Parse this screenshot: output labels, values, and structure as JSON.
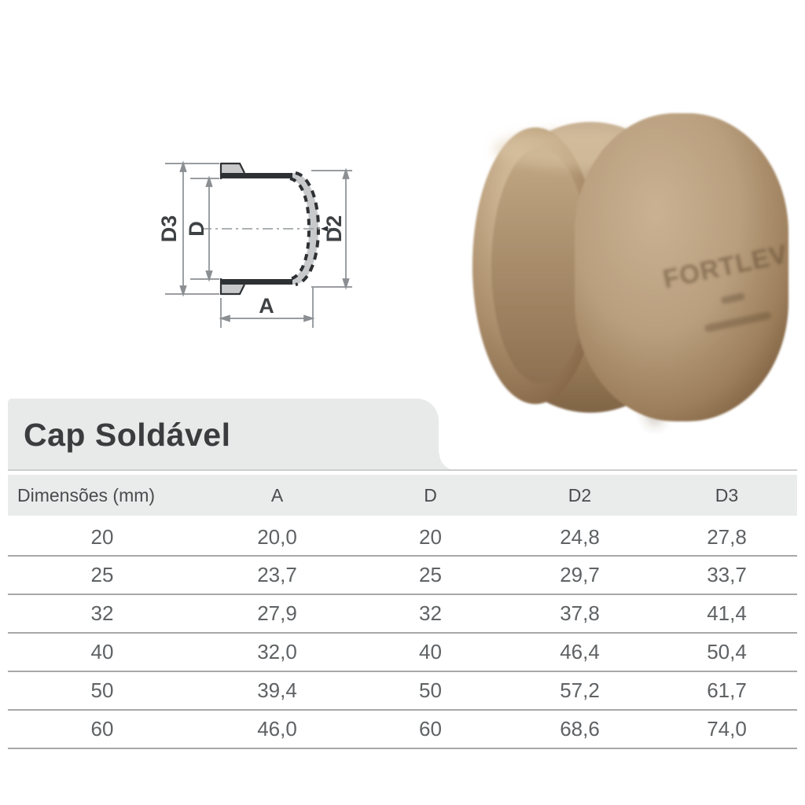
{
  "page": {
    "title": "Cap Soldável"
  },
  "diagram": {
    "labels": {
      "d3": "D3",
      "d": "D",
      "d2": "D2",
      "a": "A"
    }
  },
  "photo": {
    "emboss_brand": "FORTLEV"
  },
  "table": {
    "headers": [
      "Dimensões (mm)",
      "A",
      "D",
      "D2",
      "D3"
    ],
    "rows": [
      [
        "20",
        "20,0",
        "20",
        "24,8",
        "27,8"
      ],
      [
        "25",
        "23,7",
        "25",
        "29,7",
        "33,7"
      ],
      [
        "32",
        "27,9",
        "32",
        "37,8",
        "41,4"
      ],
      [
        "40",
        "32,0",
        "40",
        "46,4",
        "50,4"
      ],
      [
        "50",
        "39,4",
        "50",
        "57,2",
        "61,7"
      ],
      [
        "60",
        "46,0",
        "60",
        "68,6",
        "74,0"
      ]
    ]
  },
  "colors": {
    "tab_bg": "#e8eae9",
    "header_bg": "#eaeceb",
    "cap_tan": "#b39876",
    "drawing_fill": "#c7c9cb",
    "drawing_line": "#2e3134",
    "dimension_line": "#8b8f93"
  }
}
